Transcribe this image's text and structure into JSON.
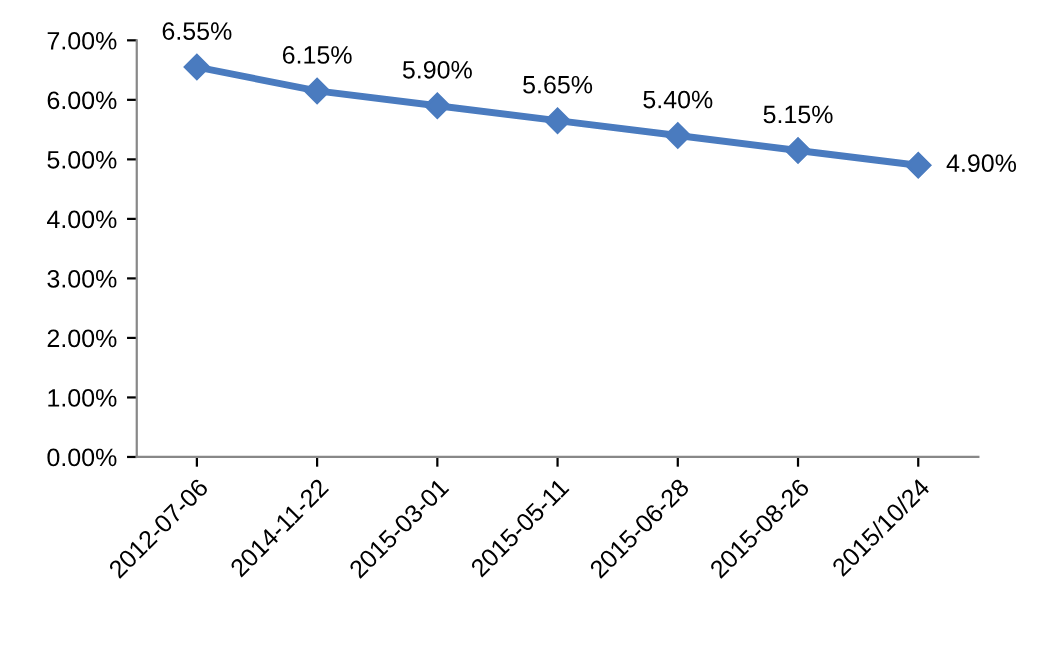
{
  "chart_data": {
    "type": "line",
    "categories": [
      "2012-07-06",
      "2014-11-22",
      "2015-03-01",
      "2015-05-11",
      "2015-06-28",
      "2015-08-26",
      "2015/10/24"
    ],
    "series": [
      {
        "color": "#4a7bbf",
        "values": [
          6.55,
          6.15,
          5.9,
          5.65,
          5.4,
          5.15,
          4.9
        ],
        "value_labels": [
          "6.55%",
          "6.15%",
          "5.90%",
          "5.65%",
          "5.40%",
          "5.15%",
          "4.90%"
        ]
      }
    ],
    "ylim": [
      0,
      7
    ],
    "yticks": [
      {
        "value": 0,
        "label": "0.00%"
      },
      {
        "value": 1,
        "label": "1.00%"
      },
      {
        "value": 2,
        "label": "2.00%"
      },
      {
        "value": 3,
        "label": "3.00%"
      },
      {
        "value": 4,
        "label": "4.00%"
      },
      {
        "value": 5,
        "label": "5.00%"
      },
      {
        "value": 6,
        "label": "6.00%"
      },
      {
        "value": 7,
        "label": "7.00%"
      }
    ],
    "marker": "diamond",
    "line_style": "solid",
    "grid": false
  }
}
